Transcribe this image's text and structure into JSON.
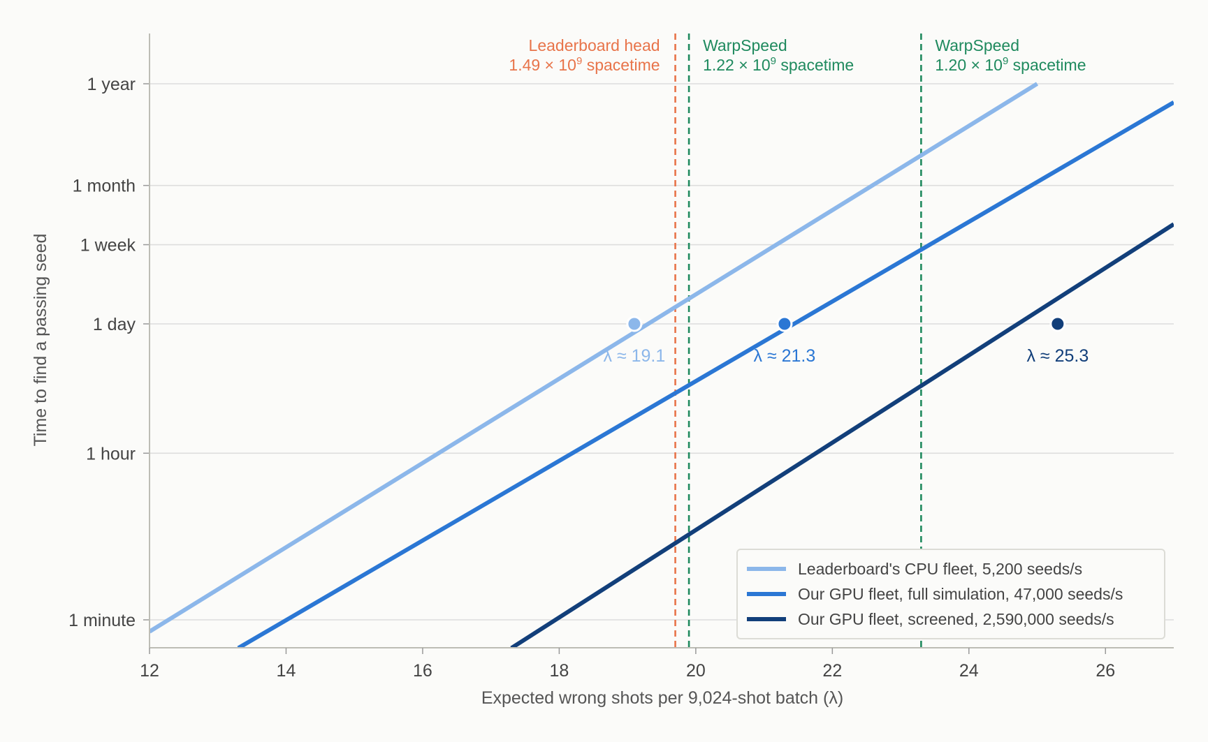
{
  "chart_data": {
    "type": "line",
    "xlabel": "Expected wrong shots per 9,024-shot batch  (λ)",
    "ylabel": "Time to find a passing seed",
    "xlim": [
      12,
      27
    ],
    "x_ticks": [
      12,
      14,
      16,
      18,
      20,
      22,
      24,
      26
    ],
    "y_scale": "log",
    "y_unit": "seconds",
    "ylim": [
      30,
      86400000
    ],
    "y_ticks": [
      {
        "label": "1 minute",
        "value": 60
      },
      {
        "label": "1 hour",
        "value": 3600
      },
      {
        "label": "1 day",
        "value": 86400
      },
      {
        "label": "1 week",
        "value": 604800
      },
      {
        "label": "1 month",
        "value": 2592000
      },
      {
        "label": "1 year",
        "value": 31536000
      }
    ],
    "grid": "horizontal",
    "legend_position": "bottom-right",
    "series": [
      {
        "name": "Leaderboard's CPU fleet, 5,200 seeds/s",
        "color": "#8cb7ea",
        "x": [
          12,
          25
        ],
        "y": [
          45,
          31536000
        ],
        "marker": {
          "x": 19.1,
          "y": 86400,
          "label": "λ ≈ 19.1"
        }
      },
      {
        "name": "Our GPU fleet, full simulation, 47,000 seeds/s",
        "color": "#2b77d4",
        "x": [
          13.3,
          27
        ],
        "y": [
          30,
          20000000
        ],
        "marker": {
          "x": 21.3,
          "y": 86400,
          "label": "λ ≈ 21.3"
        }
      },
      {
        "name": "Our GPU fleet, screened, 2,590,000 seeds/s",
        "color": "#123f7a",
        "x": [
          17.3,
          27
        ],
        "y": [
          30,
          1000000
        ],
        "marker": {
          "x": 25.3,
          "y": 86400,
          "label": "λ ≈ 25.3"
        }
      }
    ],
    "vlines": [
      {
        "x": 19.7,
        "color": "#e8744a",
        "align": "right",
        "label1": "Leaderboard head",
        "label2_pre": "1.49 × 10",
        "label2_sup": "9",
        "label2_post": " spacetime"
      },
      {
        "x": 19.9,
        "color": "#1f8a5e",
        "align": "left",
        "label1": "WarpSpeed",
        "label2_pre": "1.22 × 10",
        "label2_sup": "9",
        "label2_post": " spacetime"
      },
      {
        "x": 23.3,
        "color": "#1f8a5e",
        "align": "left",
        "label1": "WarpSpeed",
        "label2_pre": "1.20 × 10",
        "label2_sup": "9",
        "label2_post": " spacetime"
      }
    ]
  }
}
